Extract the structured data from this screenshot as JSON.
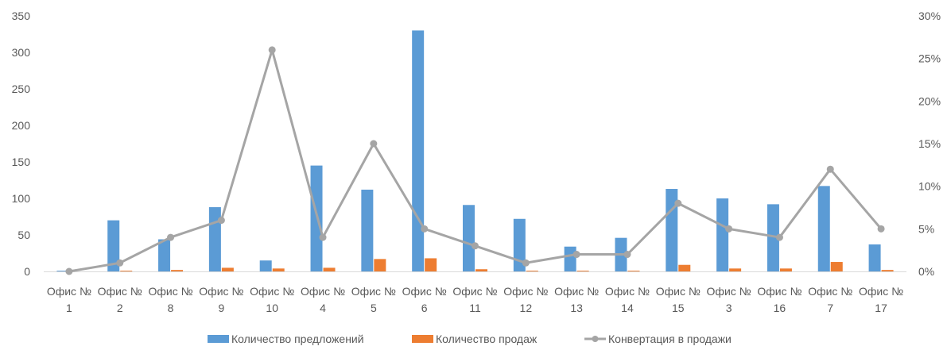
{
  "chart_data": {
    "type": "bar",
    "categories": [
      [
        "Офис №",
        "1"
      ],
      [
        "Офис №",
        "2"
      ],
      [
        "Офис №",
        "8"
      ],
      [
        "Офис №",
        "9"
      ],
      [
        "Офис №",
        "10"
      ],
      [
        "Офис №",
        "4"
      ],
      [
        "Офис №",
        "5"
      ],
      [
        "Офис №",
        "6"
      ],
      [
        "Офис №",
        "11"
      ],
      [
        "Офис №",
        "12"
      ],
      [
        "Офис №",
        "13"
      ],
      [
        "Офис №",
        "14"
      ],
      [
        "Офис №",
        "15"
      ],
      [
        "Офис №",
        "3"
      ],
      [
        "Офис №",
        "16"
      ],
      [
        "Офис №",
        "7"
      ],
      [
        "Офис №",
        "17"
      ]
    ],
    "series": [
      {
        "name": "Количество предложений",
        "kind": "bar",
        "axis": "left",
        "color": "#5B9BD5",
        "values": [
          1,
          70,
          44,
          88,
          15,
          145,
          112,
          330,
          91,
          72,
          34,
          46,
          113,
          100,
          92,
          117,
          37
        ]
      },
      {
        "name": "Количество продаж",
        "kind": "bar",
        "axis": "left",
        "color": "#ED7D31",
        "values": [
          0,
          1,
          2,
          5,
          4,
          5,
          17,
          18,
          3,
          1,
          1,
          1,
          9,
          4,
          4,
          13,
          2
        ]
      },
      {
        "name": "Конвертация в продажи",
        "kind": "line",
        "axis": "right",
        "color": "#A5A5A5",
        "values": [
          0,
          0.01,
          0.04,
          0.06,
          0.26,
          0.04,
          0.15,
          0.05,
          0.03,
          0.01,
          0.02,
          0.02,
          0.08,
          0.05,
          0.04,
          0.12,
          0.05
        ]
      }
    ],
    "y_left": {
      "min": 0,
      "max": 350,
      "step": 50,
      "ticks": [
        "0",
        "50",
        "100",
        "150",
        "200",
        "250",
        "300",
        "350"
      ]
    },
    "y_right": {
      "min": 0,
      "max": 0.3,
      "step": 0.05,
      "ticks": [
        "0%",
        "5%",
        "10%",
        "15%",
        "20%",
        "25%",
        "30%"
      ]
    },
    "grid": false,
    "legend": "bottom"
  }
}
